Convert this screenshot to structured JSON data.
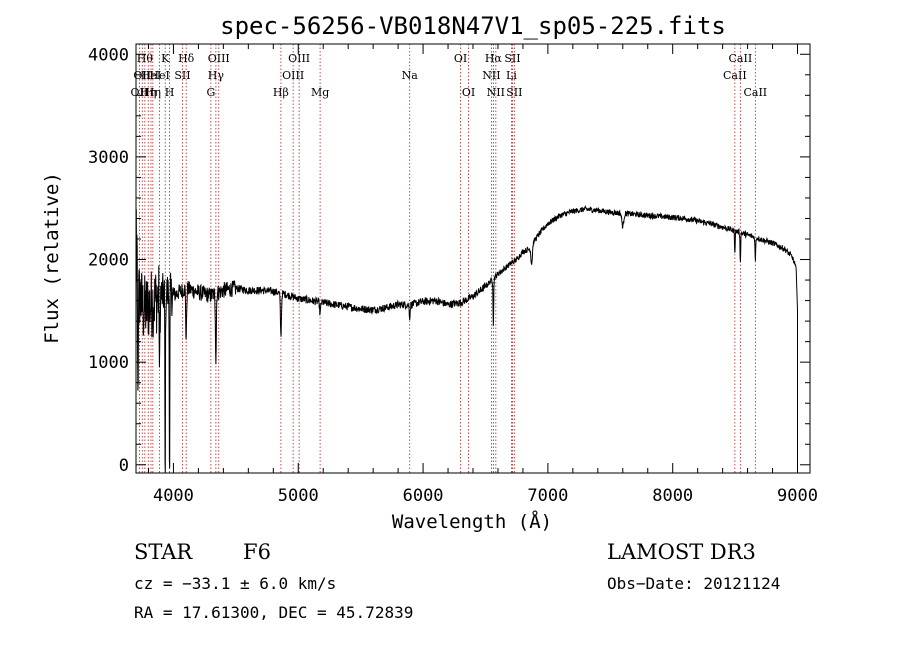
{
  "chart_data": {
    "type": "line",
    "title": "spec-56256-VB018N47V1_sp05-225.fits",
    "xlabel": "Wavelength (Å)",
    "ylabel": "Flux (relative)",
    "xlim": [
      3700,
      9100
    ],
    "ylim": [
      -80,
      4100
    ],
    "xticks": [
      4000,
      5000,
      6000,
      7000,
      8000,
      9000
    ],
    "yticks": [
      0,
      1000,
      2000,
      3000,
      4000
    ],
    "xtick_labels": [
      "4000",
      "5000",
      "6000",
      "7000",
      "8000",
      "9000"
    ],
    "ytick_labels": [
      "0",
      "1000",
      "2000",
      "3000",
      "4000"
    ],
    "continuum": [
      [
        3700,
        1600
      ],
      [
        3730,
        1650
      ],
      [
        3760,
        1500
      ],
      [
        3800,
        1550
      ],
      [
        3850,
        1600
      ],
      [
        3900,
        1650
      ],
      [
        3950,
        1680
      ],
      [
        4000,
        1650
      ],
      [
        4100,
        1720
      ],
      [
        4200,
        1680
      ],
      [
        4300,
        1650
      ],
      [
        4400,
        1700
      ],
      [
        4500,
        1720
      ],
      [
        4600,
        1700
      ],
      [
        4700,
        1700
      ],
      [
        4800,
        1690
      ],
      [
        4900,
        1660
      ],
      [
        5000,
        1620
      ],
      [
        5100,
        1600
      ],
      [
        5200,
        1580
      ],
      [
        5300,
        1560
      ],
      [
        5400,
        1540
      ],
      [
        5500,
        1520
      ],
      [
        5600,
        1510
      ],
      [
        5700,
        1530
      ],
      [
        5800,
        1560
      ],
      [
        5900,
        1560
      ],
      [
        6000,
        1590
      ],
      [
        6100,
        1600
      ],
      [
        6200,
        1560
      ],
      [
        6300,
        1580
      ],
      [
        6400,
        1640
      ],
      [
        6500,
        1740
      ],
      [
        6600,
        1860
      ],
      [
        6700,
        1960
      ],
      [
        6750,
        2000
      ],
      [
        6800,
        2080
      ],
      [
        6850,
        2100
      ],
      [
        6900,
        2200
      ],
      [
        6950,
        2280
      ],
      [
        7000,
        2350
      ],
      [
        7100,
        2430
      ],
      [
        7200,
        2470
      ],
      [
        7300,
        2490
      ],
      [
        7400,
        2480
      ],
      [
        7500,
        2460
      ],
      [
        7700,
        2440
      ],
      [
        7900,
        2420
      ],
      [
        8100,
        2400
      ],
      [
        8300,
        2350
      ],
      [
        8500,
        2280
      ],
      [
        8700,
        2200
      ],
      [
        8800,
        2160
      ],
      [
        8900,
        2100
      ],
      [
        8960,
        2020
      ],
      [
        8990,
        1900
      ],
      [
        9000,
        1500
      ]
    ],
    "features": [
      {
        "w": 3934,
        "depth": 2200,
        "width": 3
      },
      {
        "w": 3969,
        "depth": 2000,
        "width": 3
      },
      {
        "w": 3889,
        "depth": 900,
        "width": 3
      },
      {
        "w": 4102,
        "depth": 500,
        "width": 5
      },
      {
        "w": 4340,
        "depth": 650,
        "width": 5
      },
      {
        "w": 4861,
        "depth": 420,
        "width": 6
      },
      {
        "w": 5175,
        "depth": 120,
        "width": 6
      },
      {
        "w": 5893,
        "depth": 120,
        "width": 5
      },
      {
        "w": 6563,
        "depth": 450,
        "width": 4
      },
      {
        "w": 6870,
        "depth": 180,
        "width": 8
      },
      {
        "w": 7600,
        "depth": 130,
        "width": 10
      },
      {
        "w": 8498,
        "depth": 200,
        "width": 4
      },
      {
        "w": 8542,
        "depth": 280,
        "width": 4
      },
      {
        "w": 8662,
        "depth": 230,
        "width": 4
      }
    ],
    "lines": [
      {
        "w": 3727,
        "label": "OII",
        "row": 2
      },
      {
        "w": 3750,
        "label": "OII",
        "row": 1
      },
      {
        "w": 3771,
        "label": "Hθ",
        "row": 0
      },
      {
        "w": 3798,
        "label": "Hη",
        "row": 2
      },
      {
        "w": 3820,
        "label": "HeI",
        "row": 1
      },
      {
        "w": 3835,
        "label": "Hη",
        "row": 2
      },
      {
        "w": 3889,
        "label": "HeI",
        "row": 1
      },
      {
        "w": 3934,
        "label": "K",
        "row": 0
      },
      {
        "w": 3969,
        "label": "H",
        "row": 2
      },
      {
        "w": 4072,
        "label": "SII",
        "row": 1
      },
      {
        "w": 4102,
        "label": "Hδ",
        "row": 0
      },
      {
        "w": 4300,
        "label": "G",
        "row": 2
      },
      {
        "w": 4340,
        "label": "Hγ",
        "row": 1
      },
      {
        "w": 4363,
        "label": "OIII",
        "row": 0
      },
      {
        "w": 4861,
        "label": "Hβ",
        "row": 2
      },
      {
        "w": 4959,
        "label": "OIII",
        "row": 1
      },
      {
        "w": 5007,
        "label": "OIII",
        "row": 0
      },
      {
        "w": 5175,
        "label": "Mg",
        "row": 2
      },
      {
        "w": 5893,
        "label": "Na",
        "row": 1
      },
      {
        "w": 6300,
        "label": "OI",
        "row": 0
      },
      {
        "w": 6364,
        "label": "OI",
        "row": 2
      },
      {
        "w": 6548,
        "label": "NII",
        "row": 1
      },
      {
        "w": 6563,
        "label": "Hα",
        "row": 0
      },
      {
        "w": 6583,
        "label": "NII",
        "row": 2
      },
      {
        "w": 6708,
        "label": "Li",
        "row": 1
      },
      {
        "w": 6716,
        "label": "SII",
        "row": 0
      },
      {
        "w": 6731,
        "label": "SII",
        "row": 2
      },
      {
        "w": 8498,
        "label": "CaII",
        "row": 1
      },
      {
        "w": 8542,
        "label": "CaII",
        "row": 0
      },
      {
        "w": 8662,
        "label": "CaII",
        "row": 2
      }
    ]
  },
  "info": {
    "class": "STAR",
    "subclass": "F6",
    "survey": "LAMOST DR3",
    "cz": "cz = −33.1 ± 6.0 km/s",
    "obs_date": "Obs−Date: 20121124",
    "radec": "RA =  17.61300, DEC =  45.72839"
  },
  "colors": {
    "axis": "#000000",
    "spectrum": "#000000",
    "line_marker": "#b22222",
    "background": "#ffffff"
  }
}
